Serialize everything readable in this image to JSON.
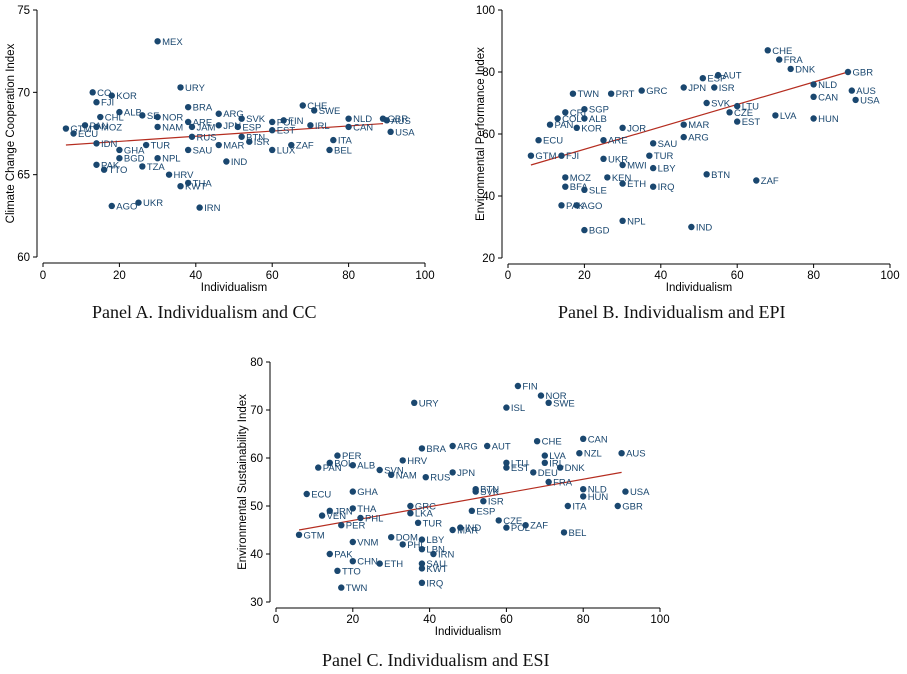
{
  "panels": [
    {
      "id": "A",
      "caption": "Panel A. Individualism and CC",
      "xlabel": "Individualism",
      "ylabel": "Climate Change Cooperation Index",
      "xlim": [
        0,
        100
      ],
      "ylim": [
        60,
        75
      ],
      "xticks": [
        0,
        20,
        40,
        60,
        80,
        100
      ],
      "yticks": [
        60,
        65,
        70,
        75
      ],
      "fit": [
        [
          6,
          66.8
        ],
        [
          89,
          68.1
        ]
      ]
    },
    {
      "id": "B",
      "caption": "Panel B. Individualism and EPI",
      "xlabel": "Individualism",
      "ylabel": "Environmental Performance Index",
      "xlim": [
        0,
        100
      ],
      "ylim": [
        20,
        100
      ],
      "xticks": [
        0,
        20,
        40,
        60,
        80,
        100
      ],
      "yticks": [
        20,
        40,
        60,
        80,
        100
      ],
      "fit": [
        [
          6,
          50
        ],
        [
          89,
          80
        ]
      ]
    },
    {
      "id": "C",
      "caption": "Panel C. Individualism and ESI",
      "xlabel": "Individualism",
      "ylabel": "Environmental Sustainability Index",
      "xlim": [
        0,
        100
      ],
      "ylim": [
        30,
        80
      ],
      "xticks": [
        0,
        20,
        40,
        60,
        80,
        100
      ],
      "yticks": [
        30,
        40,
        50,
        60,
        70,
        80
      ],
      "fit": [
        [
          6,
          45
        ],
        [
          90,
          57
        ]
      ]
    }
  ],
  "chart_data": [
    {
      "type": "scatter",
      "title": "Panel A. Individualism and CC",
      "xlabel": "Individualism",
      "ylabel": "Climate Change Cooperation Index",
      "xlim": [
        0,
        100
      ],
      "ylim": [
        60,
        75
      ],
      "grid": false,
      "points": [
        {
          "label": "MEX",
          "x": 30,
          "y": 73.1
        },
        {
          "label": "URY",
          "x": 36,
          "y": 70.3
        },
        {
          "label": "CO",
          "x": 13,
          "y": 70.0
        },
        {
          "label": "KOR",
          "x": 18,
          "y": 69.8
        },
        {
          "label": "FJI",
          "x": 14,
          "y": 69.4
        },
        {
          "label": "BRA",
          "x": 38,
          "y": 69.1
        },
        {
          "label": "CHE",
          "x": 68,
          "y": 69.2
        },
        {
          "label": "SWE",
          "x": 71,
          "y": 68.9
        },
        {
          "label": "ALB",
          "x": 20,
          "y": 68.8
        },
        {
          "label": "ARG",
          "x": 46,
          "y": 68.7
        },
        {
          "label": "SE",
          "x": 26,
          "y": 68.6
        },
        {
          "label": "NOR",
          "x": 30,
          "y": 68.5
        },
        {
          "label": "CHL",
          "x": 15,
          "y": 68.5
        },
        {
          "label": "SVK",
          "x": 52,
          "y": 68.4
        },
        {
          "label": "NLD",
          "x": 80,
          "y": 68.4
        },
        {
          "label": "GBR",
          "x": 89,
          "y": 68.4
        },
        {
          "label": "AUS",
          "x": 90,
          "y": 68.3
        },
        {
          "label": "ARE",
          "x": 38,
          "y": 68.2
        },
        {
          "label": "FIN",
          "x": 63,
          "y": 68.3
        },
        {
          "label": "POL",
          "x": 60,
          "y": 68.2
        },
        {
          "label": "PAN",
          "x": 11,
          "y": 68.0
        },
        {
          "label": "MOZ",
          "x": 14,
          "y": 67.9
        },
        {
          "label": "NAM",
          "x": 30,
          "y": 67.9
        },
        {
          "label": "JAM",
          "x": 39,
          "y": 67.9
        },
        {
          "label": "JPN",
          "x": 46,
          "y": 68.0
        },
        {
          "label": "ESP",
          "x": 51,
          "y": 67.9
        },
        {
          "label": "IRL",
          "x": 70,
          "y": 68.0
        },
        {
          "label": "CAN",
          "x": 80,
          "y": 67.9
        },
        {
          "label": "GTM",
          "x": 6,
          "y": 67.8
        },
        {
          "label": "ECU",
          "x": 8,
          "y": 67.5
        },
        {
          "label": "EST",
          "x": 60,
          "y": 67.7
        },
        {
          "label": "USA",
          "x": 91,
          "y": 67.6
        },
        {
          "label": "BTN",
          "x": 52,
          "y": 67.3
        },
        {
          "label": "RUS",
          "x": 39,
          "y": 67.3
        },
        {
          "label": "ITA",
          "x": 76,
          "y": 67.1
        },
        {
          "label": "ISR",
          "x": 54,
          "y": 67.0
        },
        {
          "label": "IDN",
          "x": 14,
          "y": 66.9
        },
        {
          "label": "TUR",
          "x": 27,
          "y": 66.8
        },
        {
          "label": "MAR",
          "x": 46,
          "y": 66.8
        },
        {
          "label": "ZAF",
          "x": 65,
          "y": 66.8
        },
        {
          "label": "SAU",
          "x": 38,
          "y": 66.5
        },
        {
          "label": "LUX",
          "x": 60,
          "y": 66.5
        },
        {
          "label": "BEL",
          "x": 75,
          "y": 66.5
        },
        {
          "label": "GHA",
          "x": 20,
          "y": 66.5
        },
        {
          "label": "NPL",
          "x": 30,
          "y": 66.0
        },
        {
          "label": "BGD",
          "x": 20,
          "y": 66.0
        },
        {
          "label": "IND",
          "x": 48,
          "y": 65.8
        },
        {
          "label": "PAK",
          "x": 14,
          "y": 65.6
        },
        {
          "label": "TZA",
          "x": 26,
          "y": 65.5
        },
        {
          "label": "TTO",
          "x": 16,
          "y": 65.3
        },
        {
          "label": "HRV",
          "x": 33,
          "y": 65.0
        },
        {
          "label": "THA",
          "x": 38,
          "y": 64.5
        },
        {
          "label": "KWT",
          "x": 36,
          "y": 64.3
        },
        {
          "label": "UKR",
          "x": 25,
          "y": 63.3
        },
        {
          "label": "AGO",
          "x": 18,
          "y": 63.1
        },
        {
          "label": "IRN",
          "x": 41,
          "y": 63.0
        }
      ],
      "fit_line": [
        [
          6,
          66.8
        ],
        [
          89,
          68.1
        ]
      ]
    },
    {
      "type": "scatter",
      "title": "Panel B. Individualism and EPI",
      "xlabel": "Individualism",
      "ylabel": "Environmental Performance Index",
      "xlim": [
        0,
        100
      ],
      "ylim": [
        20,
        100
      ],
      "grid": false,
      "points": [
        {
          "label": "CHE",
          "x": 68,
          "y": 87
        },
        {
          "label": "FRA",
          "x": 71,
          "y": 84
        },
        {
          "label": "DNK",
          "x": 74,
          "y": 81
        },
        {
          "label": "GBR",
          "x": 89,
          "y": 80
        },
        {
          "label": "AUT",
          "x": 55,
          "y": 79
        },
        {
          "label": "ESP",
          "x": 51,
          "y": 78
        },
        {
          "label": "NLD",
          "x": 80,
          "y": 76
        },
        {
          "label": "GRC",
          "x": 35,
          "y": 74
        },
        {
          "label": "AUS",
          "x": 90,
          "y": 74
        },
        {
          "label": "PRT",
          "x": 27,
          "y": 73
        },
        {
          "label": "TWN",
          "x": 17,
          "y": 73
        },
        {
          "label": "JPN",
          "x": 46,
          "y": 75
        },
        {
          "label": "ISR",
          "x": 54,
          "y": 75
        },
        {
          "label": "CAN",
          "x": 80,
          "y": 72
        },
        {
          "label": "USA",
          "x": 91,
          "y": 71
        },
        {
          "label": "SVK",
          "x": 52,
          "y": 70
        },
        {
          "label": "LTU",
          "x": 60,
          "y": 69
        },
        {
          "label": "SGP",
          "x": 20,
          "y": 68
        },
        {
          "label": "CRI",
          "x": 15,
          "y": 67
        },
        {
          "label": "CZE",
          "x": 58,
          "y": 67
        },
        {
          "label": "LVA",
          "x": 70,
          "y": 66
        },
        {
          "label": "HUN",
          "x": 80,
          "y": 65
        },
        {
          "label": "EST",
          "x": 60,
          "y": 64
        },
        {
          "label": "COL",
          "x": 13,
          "y": 65
        },
        {
          "label": "ALB",
          "x": 20,
          "y": 65
        },
        {
          "label": "MAR",
          "x": 46,
          "y": 63
        },
        {
          "label": "PAN",
          "x": 11,
          "y": 63
        },
        {
          "label": "KOR",
          "x": 18,
          "y": 62
        },
        {
          "label": "JOR",
          "x": 30,
          "y": 62
        },
        {
          "label": "ARG",
          "x": 46,
          "y": 59
        },
        {
          "label": "ECU",
          "x": 8,
          "y": 58
        },
        {
          "label": "SAU",
          "x": 38,
          "y": 57
        },
        {
          "label": "ARE",
          "x": 25,
          "y": 58
        },
        {
          "label": "GTM",
          "x": 6,
          "y": 53
        },
        {
          "label": "FJI",
          "x": 14,
          "y": 53
        },
        {
          "label": "UKR",
          "x": 25,
          "y": 52
        },
        {
          "label": "TUR",
          "x": 37,
          "y": 53
        },
        {
          "label": "MWI",
          "x": 30,
          "y": 50
        },
        {
          "label": "LBY",
          "x": 38,
          "y": 49
        },
        {
          "label": "BTN",
          "x": 52,
          "y": 47
        },
        {
          "label": "MOZ",
          "x": 15,
          "y": 46
        },
        {
          "label": "KEN",
          "x": 26,
          "y": 46
        },
        {
          "label": "ETH",
          "x": 30,
          "y": 44
        },
        {
          "label": "ZAF",
          "x": 65,
          "y": 45
        },
        {
          "label": "BFA",
          "x": 15,
          "y": 43
        },
        {
          "label": "SLE",
          "x": 20,
          "y": 42
        },
        {
          "label": "IRQ",
          "x": 38,
          "y": 43
        },
        {
          "label": "PAK",
          "x": 14,
          "y": 37
        },
        {
          "label": "AGO",
          "x": 18,
          "y": 37
        },
        {
          "label": "NPL",
          "x": 30,
          "y": 32
        },
        {
          "label": "IND",
          "x": 48,
          "y": 30
        },
        {
          "label": "BGD",
          "x": 20,
          "y": 29
        }
      ],
      "fit_line": [
        [
          6,
          50
        ],
        [
          89,
          80
        ]
      ]
    },
    {
      "type": "scatter",
      "title": "Panel C. Individualism and ESI",
      "xlabel": "Individualism",
      "ylabel": "Environmental Sustainability Index",
      "xlim": [
        0,
        100
      ],
      "ylim": [
        30,
        80
      ],
      "grid": false,
      "points": [
        {
          "label": "FIN",
          "x": 63,
          "y": 75
        },
        {
          "label": "NOR",
          "x": 69,
          "y": 73
        },
        {
          "label": "SWE",
          "x": 71,
          "y": 71.5
        },
        {
          "label": "URY",
          "x": 36,
          "y": 71.5
        },
        {
          "label": "ISL",
          "x": 60,
          "y": 70.5
        },
        {
          "label": "CAN",
          "x": 80,
          "y": 64
        },
        {
          "label": "CHE",
          "x": 68,
          "y": 63.5
        },
        {
          "label": "ARG",
          "x": 46,
          "y": 62.5
        },
        {
          "label": "AUT",
          "x": 55,
          "y": 62.5
        },
        {
          "label": "BRA",
          "x": 38,
          "y": 62
        },
        {
          "label": "NZL",
          "x": 79,
          "y": 61
        },
        {
          "label": "AUS",
          "x": 90,
          "y": 61
        },
        {
          "label": "PER",
          "x": 16,
          "y": 60.5
        },
        {
          "label": "LVA",
          "x": 70,
          "y": 60.5
        },
        {
          "label": "HRV",
          "x": 33,
          "y": 59.5
        },
        {
          "label": "IRL",
          "x": 70,
          "y": 59
        },
        {
          "label": "LTU",
          "x": 60,
          "y": 59
        },
        {
          "label": "BOL",
          "x": 14,
          "y": 59
        },
        {
          "label": "ALB",
          "x": 20,
          "y": 58.5
        },
        {
          "label": "DNK",
          "x": 74,
          "y": 58
        },
        {
          "label": "EST",
          "x": 60,
          "y": 58
        },
        {
          "label": "PAN",
          "x": 11,
          "y": 58
        },
        {
          "label": "SVN",
          "x": 27,
          "y": 57.5
        },
        {
          "label": "JPN",
          "x": 46,
          "y": 57
        },
        {
          "label": "DEU",
          "x": 67,
          "y": 57
        },
        {
          "label": "NAM",
          "x": 30,
          "y": 56.5
        },
        {
          "label": "RUS",
          "x": 39,
          "y": 56
        },
        {
          "label": "FRA",
          "x": 71,
          "y": 55
        },
        {
          "label": "NLD",
          "x": 80,
          "y": 53.5
        },
        {
          "label": "BTN",
          "x": 52,
          "y": 53.5
        },
        {
          "label": "SVK",
          "x": 52,
          "y": 53
        },
        {
          "label": "USA",
          "x": 91,
          "y": 53
        },
        {
          "label": "ECU",
          "x": 8,
          "y": 52.5
        },
        {
          "label": "GHA",
          "x": 20,
          "y": 53
        },
        {
          "label": "HUN",
          "x": 80,
          "y": 52
        },
        {
          "label": "ISR",
          "x": 54,
          "y": 51
        },
        {
          "label": "ITA",
          "x": 76,
          "y": 50
        },
        {
          "label": "GBR",
          "x": 89,
          "y": 50
        },
        {
          "label": "GRC",
          "x": 35,
          "y": 50
        },
        {
          "label": "THA",
          "x": 20,
          "y": 49.5
        },
        {
          "label": "ESP",
          "x": 51,
          "y": 49
        },
        {
          "label": "JRN",
          "x": 14,
          "y": 49
        },
        {
          "label": "LKA",
          "x": 35,
          "y": 48.5
        },
        {
          "label": "VEN",
          "x": 12,
          "y": 48
        },
        {
          "label": "PHL",
          "x": 22,
          "y": 47.5
        },
        {
          "label": "CZE",
          "x": 58,
          "y": 47
        },
        {
          "label": "ZAF",
          "x": 65,
          "y": 46
        },
        {
          "label": "TUR",
          "x": 37,
          "y": 46.5
        },
        {
          "label": "POL",
          "x": 60,
          "y": 45.5
        },
        {
          "label": "PER",
          "x": 17,
          "y": 46
        },
        {
          "label": "IND",
          "x": 48,
          "y": 45.5
        },
        {
          "label": "MAR",
          "x": 46,
          "y": 45
        },
        {
          "label": "GTM",
          "x": 6,
          "y": 44
        },
        {
          "label": "BEL",
          "x": 75,
          "y": 44.5
        },
        {
          "label": "DOM",
          "x": 30,
          "y": 43.5
        },
        {
          "label": "LBY",
          "x": 38,
          "y": 43
        },
        {
          "label": "VNM",
          "x": 20,
          "y": 42.5
        },
        {
          "label": "PHL",
          "x": 33,
          "y": 42
        },
        {
          "label": "LBN",
          "x": 38,
          "y": 41
        },
        {
          "label": "IRN",
          "x": 41,
          "y": 40
        },
        {
          "label": "PAK",
          "x": 14,
          "y": 40
        },
        {
          "label": "CHN",
          "x": 20,
          "y": 38.5
        },
        {
          "label": "ETH",
          "x": 27,
          "y": 38
        },
        {
          "label": "SAU",
          "x": 38,
          "y": 38
        },
        {
          "label": "KWT",
          "x": 38,
          "y": 37
        },
        {
          "label": "TTO",
          "x": 16,
          "y": 36.5
        },
        {
          "label": "IRQ",
          "x": 38,
          "y": 34
        },
        {
          "label": "TWN",
          "x": 17,
          "y": 33
        }
      ],
      "fit_line": [
        [
          6,
          45
        ],
        [
          90,
          57
        ]
      ]
    }
  ]
}
